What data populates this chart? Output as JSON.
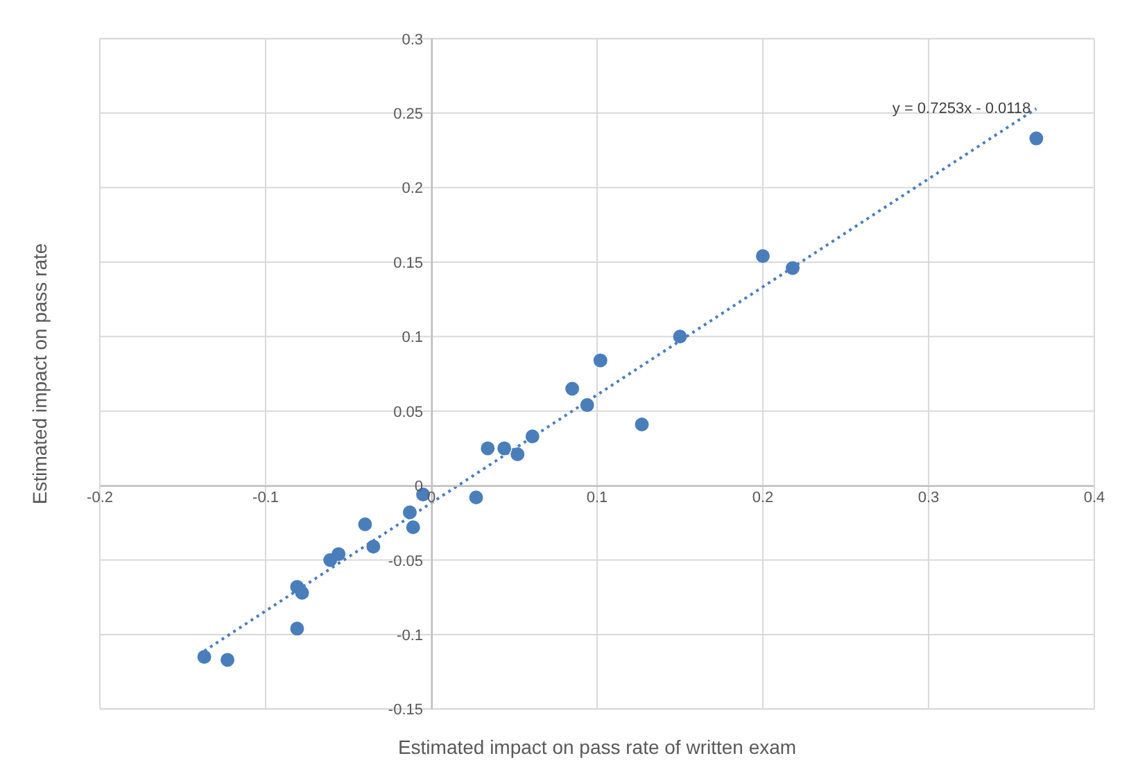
{
  "chart_data": {
    "type": "scatter",
    "xlabel": "Estimated impact on pass rate of written exam",
    "ylabel": "Estimated impact on pass rate",
    "marker": "circle",
    "grid": true,
    "xlim": [
      -0.2,
      0.4
    ],
    "ylim": [
      -0.15,
      0.3
    ],
    "xticks": [
      -0.2,
      -0.1,
      0,
      0.1,
      0.2,
      0.3,
      0.4
    ],
    "yticks": [
      -0.15,
      -0.1,
      -0.05,
      0,
      0.05,
      0.1,
      0.15,
      0.2,
      0.25,
      0.3
    ],
    "annotations": [
      {
        "text": "y = 0.7253x - 0.0118",
        "x": 0.365,
        "y": 0.253
      }
    ],
    "series": [
      {
        "color": "#4a7ebb",
        "x": [
          0.365,
          0.2,
          0.218,
          0.15,
          0.102,
          0.085,
          0.094,
          0.127,
          0.061,
          0.034,
          0.044,
          0.052,
          -0.005,
          0.027,
          -0.013,
          -0.011,
          -0.04,
          -0.035,
          -0.056,
          -0.061,
          -0.081,
          -0.078,
          -0.081,
          -0.137,
          -0.123
        ],
        "values": [
          0.233,
          0.154,
          0.146,
          0.1,
          0.084,
          0.065,
          0.054,
          0.041,
          0.033,
          0.025,
          0.025,
          0.021,
          -0.006,
          -0.008,
          -0.018,
          -0.028,
          -0.026,
          -0.041,
          -0.046,
          -0.05,
          -0.068,
          -0.072,
          -0.096,
          -0.115,
          -0.117
        ]
      },
      {
        "type": "line",
        "line_style": "dotted",
        "marker": "none",
        "color": "#4a7ebb",
        "x": [
          -0.137,
          0.365
        ],
        "values": [
          -0.111,
          0.253
        ]
      }
    ]
  }
}
